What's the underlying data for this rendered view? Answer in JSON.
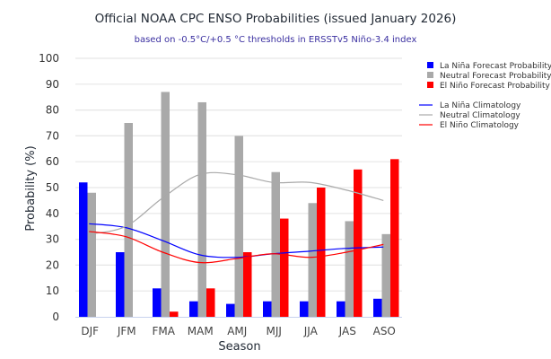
{
  "chart_data": {
    "type": "bar",
    "title": "Official NOAA CPC ENSO Probabilities (issued January 2026)",
    "subtitle": "based on -0.5°C/+0.5 °C thresholds in ERSSTv5 Niño-3.4 index",
    "xlabel": "Season",
    "ylabel": "Probability (%)",
    "ylim": [
      0,
      100
    ],
    "yticks": [
      "0",
      "10",
      "20",
      "30",
      "40",
      "50",
      "60",
      "70",
      "80",
      "90",
      "100"
    ],
    "ytick_values": [
      0,
      10,
      20,
      30,
      40,
      50,
      60,
      70,
      80,
      90,
      100
    ],
    "grid": true,
    "legend_position": "right",
    "categories": [
      "DJF",
      "JFM",
      "FMA",
      "MAM",
      "AMJ",
      "MJJ",
      "JJA",
      "JAS",
      "ASO"
    ],
    "series": [
      {
        "name": "La Niña Forecast Probability",
        "kind": "bar",
        "color": "#0000ff",
        "values": [
          52,
          25,
          11,
          6,
          5,
          6,
          6,
          6,
          7
        ]
      },
      {
        "name": "Neutral Forecast Probability",
        "kind": "bar",
        "color": "#a9a9a9",
        "values": [
          48,
          75,
          87,
          83,
          70,
          56,
          44,
          37,
          32
        ]
      },
      {
        "name": "El Niño Forecast Probability",
        "kind": "bar",
        "color": "#ff0000",
        "values": [
          0,
          0,
          2,
          11,
          25,
          38,
          50,
          57,
          61
        ]
      },
      {
        "name": "La Niña Climatology",
        "kind": "line",
        "color": "#0000ff",
        "values": [
          36,
          34.5,
          29.5,
          24,
          23,
          24.4,
          25.4,
          26.5,
          27
        ]
      },
      {
        "name": "Neutral Climatology",
        "kind": "line",
        "color": "#a9a9a9",
        "values": [
          32,
          35,
          46,
          55,
          55,
          52,
          52,
          49,
          45
        ]
      },
      {
        "name": "El Niño Climatology",
        "kind": "line",
        "color": "#ff0000",
        "values": [
          33,
          31,
          25,
          21,
          22.5,
          24.4,
          23,
          25,
          28
        ]
      }
    ]
  }
}
